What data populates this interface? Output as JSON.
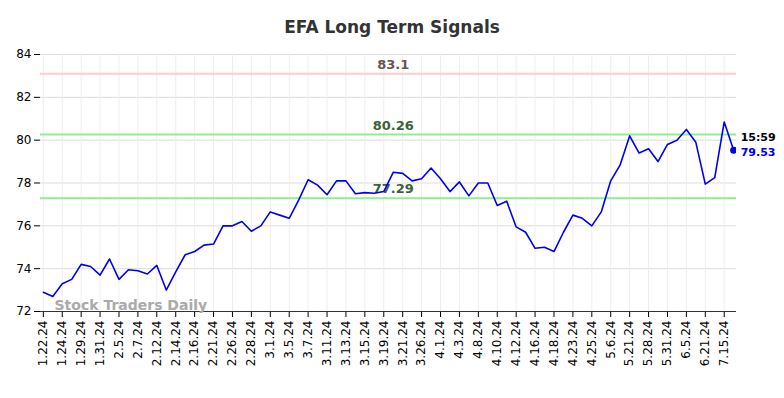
{
  "chart_data": {
    "type": "line",
    "title": "EFA Long Term Signals",
    "categories": [
      "1.22.24",
      null,
      "1.24.24",
      null,
      "1.29.24",
      null,
      "1.31.24",
      null,
      "2.5.24",
      null,
      "2.7.24",
      null,
      "2.12.24",
      null,
      "2.14.24",
      null,
      "2.16.24",
      null,
      "2.21.24",
      null,
      "2.26.24",
      null,
      "2.28.24",
      null,
      "3.1.24",
      null,
      "3.5.24",
      null,
      "3.7.24",
      null,
      "3.11.24",
      null,
      "3.13.24",
      null,
      "3.15.24",
      null,
      "3.19.24",
      null,
      "3.21.24",
      null,
      "3.26.24",
      null,
      "4.1.24",
      null,
      "4.3.24",
      null,
      "4.8.24",
      null,
      "4.10.24",
      null,
      "4.12.24",
      null,
      "4.16.24",
      null,
      "4.18.24",
      null,
      "4.23.24",
      null,
      "4.25.24",
      null,
      "5.6.24",
      null,
      "5.21.24",
      null,
      "5.28.24",
      null,
      "5.31.24",
      null,
      "6.5.24",
      null,
      "6.21.24",
      null,
      "7.15.24",
      null
    ],
    "values": [
      72.9,
      72.7,
      73.3,
      73.5,
      74.2,
      74.1,
      73.7,
      74.45,
      73.5,
      73.95,
      73.9,
      73.75,
      74.15,
      73.0,
      73.85,
      74.65,
      74.8,
      75.1,
      75.15,
      76.0,
      76.0,
      76.2,
      75.75,
      76.0,
      76.65,
      76.5,
      76.35,
      77.2,
      78.15,
      77.9,
      77.45,
      78.1,
      78.1,
      77.5,
      77.55,
      77.52,
      77.6,
      78.5,
      78.45,
      78.1,
      78.2,
      78.7,
      78.2,
      77.6,
      78.05,
      77.4,
      78.0,
      78.0,
      76.95,
      77.15,
      75.95,
      75.7,
      74.95,
      75.0,
      74.8,
      75.7,
      76.5,
      76.35,
      76.0,
      76.65,
      78.1,
      78.85,
      80.2,
      79.4,
      79.6,
      79.0,
      79.8,
      80.0,
      80.5,
      79.9,
      77.95,
      78.25,
      80.85,
      79.53
    ],
    "color": "#0000ee",
    "ylim": [
      72,
      84
    ],
    "yticks": [
      72,
      74,
      76,
      78,
      80,
      82,
      84
    ],
    "grid": true,
    "data_labels": false,
    "annotations": [
      {
        "type": "hline",
        "value": 83.1,
        "label": "83.1",
        "color": "#ffcccc"
      },
      {
        "type": "hline",
        "value": 80.26,
        "label": "80.26",
        "color": "#90ee90"
      },
      {
        "type": "hline",
        "value": 77.29,
        "label": "77.29",
        "color": "#90ee90"
      }
    ],
    "last_point_label": "15:59",
    "watermark": "Stock Traders Daily"
  }
}
